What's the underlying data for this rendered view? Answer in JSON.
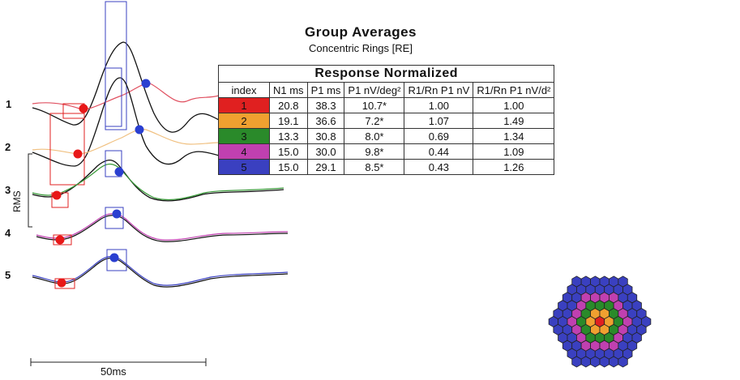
{
  "chart_data": {
    "type": "line",
    "title": "Group Averages",
    "subtitle": "Concentric Rings [RE]",
    "ring_labels": [
      "1",
      "2",
      "3",
      "4",
      "5"
    ],
    "rms_label": "RMS",
    "scale_bar_label": "50ms",
    "colors": {
      "ring1": "#e02020",
      "ring2": "#f0a030",
      "ring3": "#2a8a2a",
      "ring4": "#c040b0",
      "ring5": "#3a40c0",
      "group_trace": "#111111",
      "n1_marker": "#e81818",
      "p1_marker": "#2a3fd0"
    },
    "table": {
      "caption": "Response Normalized",
      "columns": [
        "index",
        "N1 ms",
        "P1 ms",
        "P1 nV/deg²",
        "R1/Rn P1 nV",
        "R1/Rn P1 nV/d²"
      ],
      "rows": [
        {
          "index": "1",
          "color": "#e02020",
          "n1_ms": "20.8",
          "p1_ms": "38.3",
          "p1_nv_deg2": "10.7*",
          "r1rn_p1_nv": "1.00",
          "r1rn_p1_nvd2": "1.00"
        },
        {
          "index": "2",
          "color": "#f0a030",
          "n1_ms": "19.1",
          "p1_ms": "36.6",
          "p1_nv_deg2": "7.2*",
          "r1rn_p1_nv": "1.07",
          "r1rn_p1_nvd2": "1.49"
        },
        {
          "index": "3",
          "color": "#2a8a2a",
          "n1_ms": "13.3",
          "p1_ms": "30.8",
          "p1_nv_deg2": "8.0*",
          "r1rn_p1_nv": "0.69",
          "r1rn_p1_nvd2": "1.34"
        },
        {
          "index": "4",
          "color": "#c040b0",
          "n1_ms": "15.0",
          "p1_ms": "30.0",
          "p1_nv_deg2": "9.8*",
          "r1rn_p1_nv": "0.44",
          "r1rn_p1_nvd2": "1.09"
        },
        {
          "index": "5",
          "color": "#3a40c0",
          "n1_ms": "15.0",
          "p1_ms": "29.1",
          "p1_nv_deg2": "8.5*",
          "r1rn_p1_nv": "0.43",
          "r1rn_p1_nvd2": "1.26"
        }
      ]
    },
    "hex_rings": {
      "ring_colors": [
        "#e02020",
        "#f0a030",
        "#2a8a2a",
        "#c040b0",
        "#3a40c0"
      ]
    }
  }
}
